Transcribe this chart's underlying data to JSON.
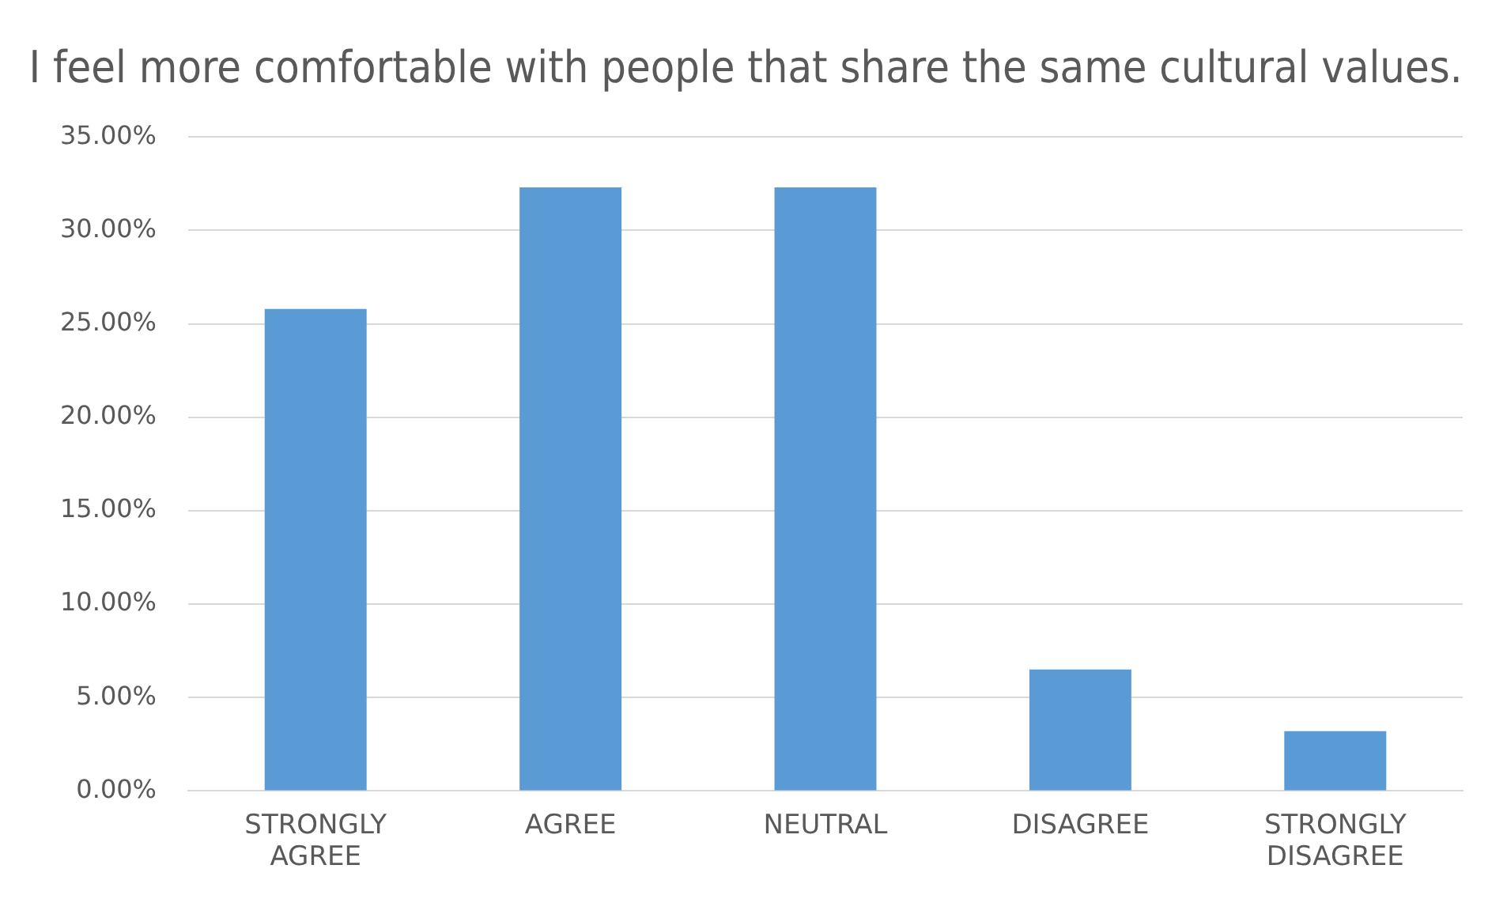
{
  "chart_data": {
    "type": "bar",
    "title": "I feel more comfortable with people that share the same cultural values.",
    "categories": [
      "STRONGLY AGREE",
      "AGREE",
      "NEUTRAL",
      "DISAGREE",
      "STRONGLY DISAGREE"
    ],
    "values": [
      25.8,
      32.3,
      32.3,
      6.5,
      3.2
    ],
    "color": "#5b9bd5",
    "ylim": [
      0,
      35
    ],
    "yticks": [
      {
        "value": 0,
        "label": "0.00%"
      },
      {
        "value": 5,
        "label": "5.00%"
      },
      {
        "value": 10,
        "label": "10.00%"
      },
      {
        "value": 15,
        "label": "15.00%"
      },
      {
        "value": 20,
        "label": "20.00%"
      },
      {
        "value": 25,
        "label": "25.00%"
      },
      {
        "value": 30,
        "label": "30.00%"
      },
      {
        "value": 35,
        "label": "35.00%"
      }
    ],
    "grid": "y",
    "legend": false
  }
}
